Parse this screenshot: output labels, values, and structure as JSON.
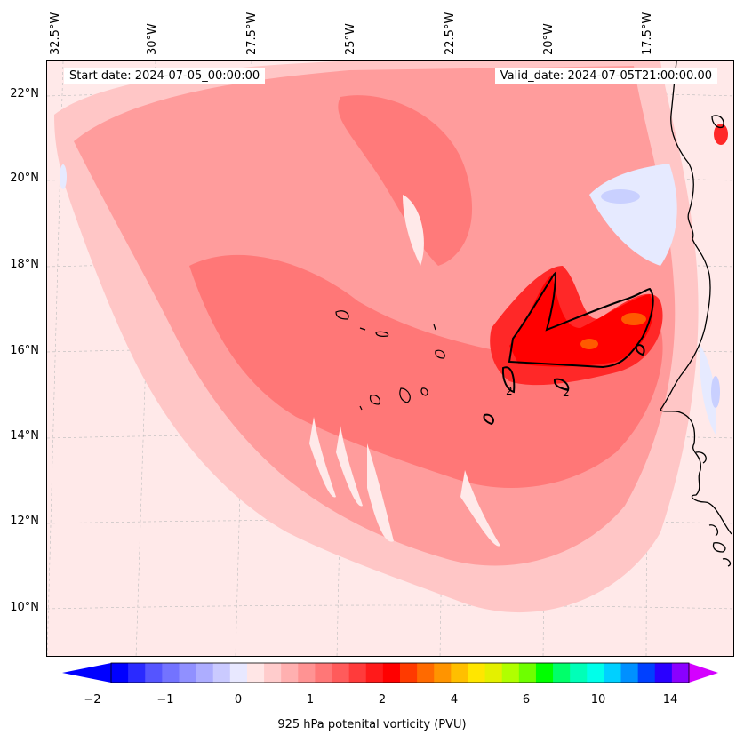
{
  "map": {
    "start_date": "Start date: 2024-07-05_00:00:00",
    "valid_date": "Valid_date: 2024-07-05T21:00:00.00",
    "lat_labels": [
      "22°N",
      "20°N",
      "18°N",
      "16°N",
      "14°N",
      "12°N",
      "10°N"
    ],
    "lon_labels": [
      "32.5°W",
      "30°W",
      "27.5°W",
      "25°W",
      "22.5°W",
      "20°W",
      "17.5°W"
    ],
    "contour_labels": [
      "2",
      "2"
    ],
    "field_colors": {
      "background": "#ffe9e9",
      "light_pink": "#ffc6c6",
      "pink": "#ff9c9c",
      "salmon": "#ff7777",
      "red": "#ff2828",
      "dark_red": "#ff0000",
      "orange": "#ff5a00",
      "light_blue": "#e6eaff",
      "blue": "#c9d0ff"
    },
    "coastline_color": "#000000"
  },
  "colorbar": {
    "label": "925 hPa potenital vorticity (PVU)",
    "tick_labels": [
      "−2",
      "−1",
      "0",
      "1",
      "2",
      "4",
      "6",
      "10",
      "14"
    ],
    "colors": [
      "#0000ff",
      "#2a2aff",
      "#5555ff",
      "#7373ff",
      "#9090ff",
      "#adadff",
      "#cacaff",
      "#e8e8ff",
      "#ffe6e6",
      "#ffcccc",
      "#ffb0b0",
      "#ff9393",
      "#ff7777",
      "#ff5b5b",
      "#ff3b3b",
      "#ff1a1a",
      "#ff0000",
      "#ff3a00",
      "#ff6a00",
      "#ff9400",
      "#ffbf00",
      "#ffe600",
      "#e4f000",
      "#b0ff00",
      "#6eff00",
      "#00ff00",
      "#00ff6a",
      "#00ffb8",
      "#00ffea",
      "#00d0ff",
      "#0090ff",
      "#0040ff",
      "#2a00ff",
      "#8a00ff"
    ],
    "arrow_left_color": "#0000ff",
    "arrow_right_color": "#d400ff"
  }
}
